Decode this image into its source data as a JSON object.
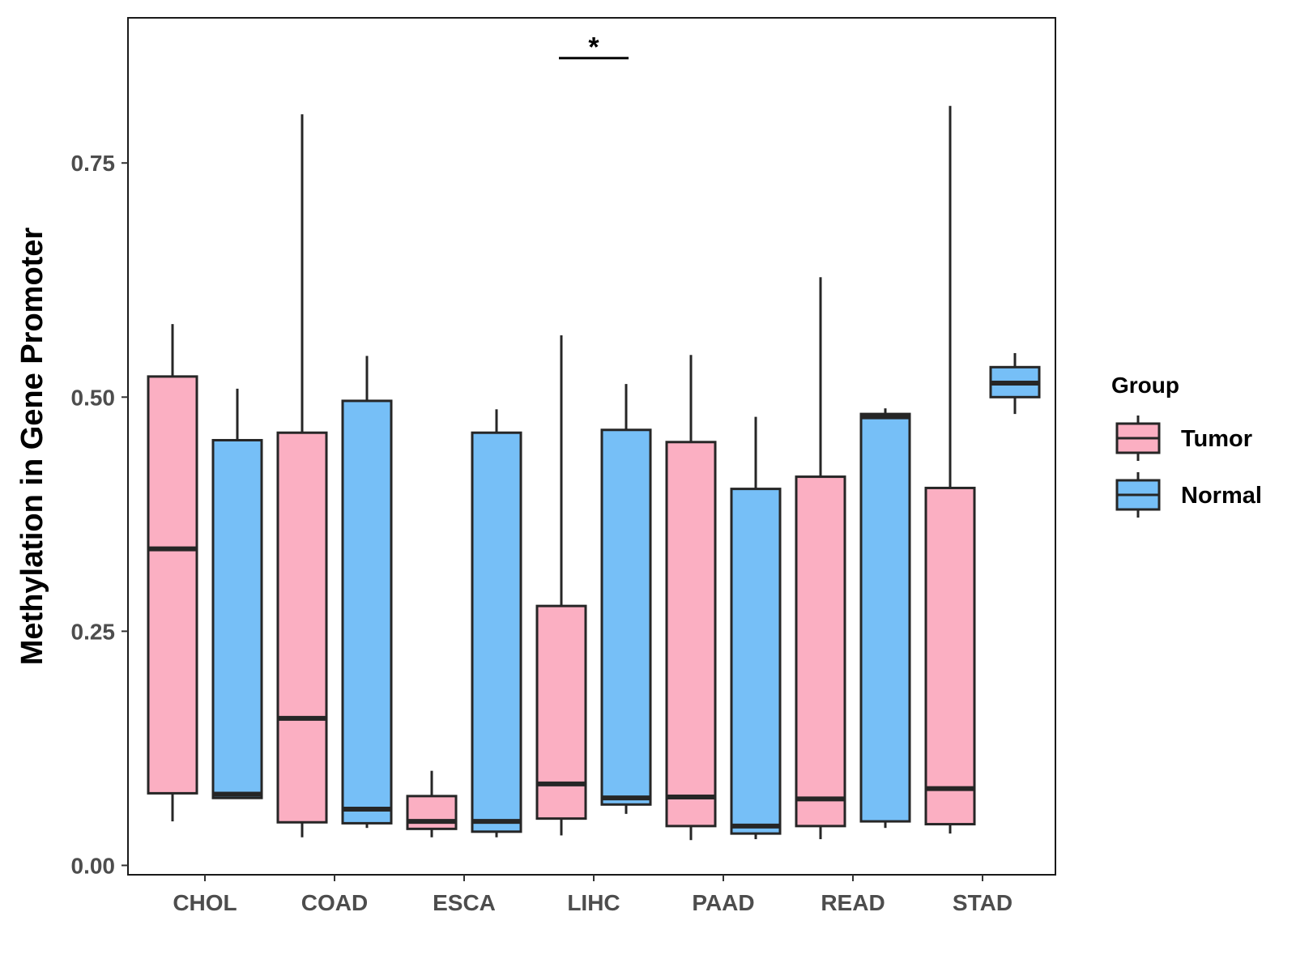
{
  "chart_data": {
    "type": "boxplot",
    "title": "",
    "xlabel": "",
    "ylabel": "Methylation in Gene Promoter",
    "ylim": [
      -0.01,
      0.905
    ],
    "yticks": [
      0.0,
      0.25,
      0.5,
      0.75
    ],
    "ytick_labels": [
      "0.00",
      "0.25",
      "0.50",
      "0.75"
    ],
    "grid": false,
    "categories": [
      "CHOL",
      "COAD",
      "ESCA",
      "LIHC",
      "PAAD",
      "READ",
      "STAD"
    ],
    "legend": {
      "title": "Group",
      "position": "right",
      "entries": [
        {
          "name": "Tumor",
          "color": "#fbafc2"
        },
        {
          "name": "Normal",
          "color": "#76bff7"
        }
      ]
    },
    "series": [
      {
        "name": "Tumor",
        "color": "#fbafc2",
        "boxes": [
          {
            "category": "CHOL",
            "min": 0.047,
            "q1": 0.077,
            "median": 0.338,
            "q3": 0.522,
            "max": 0.578
          },
          {
            "category": "COAD",
            "min": 0.03,
            "q1": 0.046,
            "median": 0.157,
            "q3": 0.462,
            "max": 0.802
          },
          {
            "category": "ESCA",
            "min": 0.03,
            "q1": 0.039,
            "median": 0.047,
            "q3": 0.074,
            "max": 0.101
          },
          {
            "category": "LIHC",
            "min": 0.032,
            "q1": 0.05,
            "median": 0.087,
            "q3": 0.277,
            "max": 0.566
          },
          {
            "category": "PAAD",
            "min": 0.027,
            "q1": 0.042,
            "median": 0.073,
            "q3": 0.452,
            "max": 0.545
          },
          {
            "category": "READ",
            "min": 0.028,
            "q1": 0.042,
            "median": 0.071,
            "q3": 0.415,
            "max": 0.628
          },
          {
            "category": "STAD",
            "min": 0.034,
            "q1": 0.044,
            "median": 0.082,
            "q3": 0.403,
            "max": 0.811
          }
        ]
      },
      {
        "name": "Normal",
        "color": "#76bff7",
        "boxes": [
          {
            "category": "CHOL",
            "min": 0.072,
            "q1": 0.072,
            "median": 0.076,
            "q3": 0.454,
            "max": 0.509
          },
          {
            "category": "COAD",
            "min": 0.04,
            "q1": 0.045,
            "median": 0.06,
            "q3": 0.496,
            "max": 0.544
          },
          {
            "category": "ESCA",
            "min": 0.03,
            "q1": 0.036,
            "median": 0.047,
            "q3": 0.462,
            "max": 0.487
          },
          {
            "category": "LIHC",
            "min": 0.055,
            "q1": 0.065,
            "median": 0.072,
            "q3": 0.465,
            "max": 0.514
          },
          {
            "category": "PAAD",
            "min": 0.028,
            "q1": 0.034,
            "median": 0.042,
            "q3": 0.402,
            "max": 0.479
          },
          {
            "category": "READ",
            "min": 0.04,
            "q1": 0.047,
            "median": 0.479,
            "q3": 0.482,
            "max": 0.488
          },
          {
            "category": "STAD",
            "min": 0.482,
            "q1": 0.5,
            "median": 0.515,
            "q3": 0.532,
            "max": 0.547
          }
        ]
      }
    ],
    "annotations": [
      {
        "type": "significance",
        "category": "LIHC",
        "label": "*",
        "y": 0.862
      }
    ]
  }
}
